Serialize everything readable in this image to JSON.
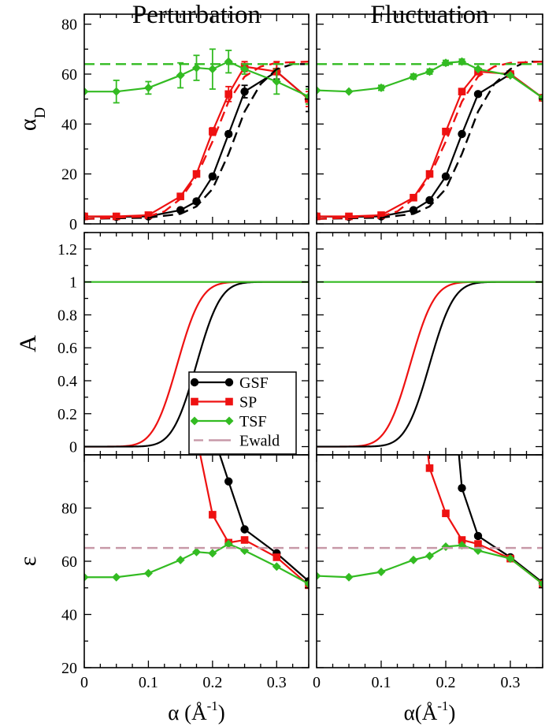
{
  "colors": {
    "GSF": "#000000",
    "SP": "#ee1111",
    "TSF": "#33bb22",
    "Ewald": "#c799a8"
  },
  "chart_data": [
    {
      "id": "alphaD-perturbation",
      "type": "line",
      "title": "Perturbation",
      "ylabel": "α",
      "ylabel_sub": "D",
      "xlim": [
        0,
        0.35
      ],
      "ylim": [
        0,
        84
      ],
      "yticks": [
        0,
        20,
        40,
        60,
        80
      ],
      "xticks": [
        0,
        0.1,
        0.2,
        0.3
      ],
      "series": [
        {
          "name": "GSF",
          "style": "marker-line",
          "marker": "circle",
          "x": [
            0,
            0.05,
            0.1,
            0.15,
            0.175,
            0.2,
            0.225,
            0.25,
            0.3,
            0.35
          ],
          "y": [
            3,
            2.8,
            3,
            5.5,
            9,
            19,
            36,
            53,
            61,
            50
          ],
          "err": [
            0,
            0,
            0,
            0,
            1,
            1,
            1,
            2.5,
            3,
            5
          ]
        },
        {
          "name": "SP",
          "style": "marker-line",
          "marker": "square",
          "x": [
            0,
            0.05,
            0.1,
            0.15,
            0.175,
            0.2,
            0.225,
            0.25,
            0.3,
            0.35
          ],
          "y": [
            3,
            3,
            3.5,
            11,
            20,
            37,
            52,
            63,
            61,
            50
          ],
          "err": [
            0,
            0,
            0,
            1,
            1,
            1.5,
            3,
            2,
            4,
            3
          ]
        },
        {
          "name": "TSF",
          "style": "marker-line",
          "marker": "diamond",
          "x": [
            0,
            0.05,
            0.1,
            0.15,
            0.175,
            0.2,
            0.225,
            0.25,
            0.3,
            0.35
          ],
          "y": [
            53,
            53,
            54.5,
            59.5,
            62.5,
            62,
            65,
            62,
            57,
            51
          ],
          "err": [
            0,
            4.5,
            2.5,
            5,
            5,
            8,
            4.5,
            2,
            5,
            3
          ]
        },
        {
          "name": "GSF",
          "style": "dashed",
          "x": [
            0,
            0.1,
            0.15,
            0.175,
            0.2,
            0.225,
            0.25,
            0.275,
            0.3,
            0.325,
            0.35
          ],
          "y": [
            2,
            2.5,
            4,
            7,
            14,
            28,
            45,
            56,
            62,
            64,
            64
          ]
        },
        {
          "name": "SP",
          "style": "dashed",
          "x": [
            0,
            0.1,
            0.125,
            0.15,
            0.175,
            0.2,
            0.225,
            0.25,
            0.275,
            0.3,
            0.35
          ],
          "y": [
            2,
            3,
            5,
            10,
            19,
            33,
            49,
            59,
            63,
            64.5,
            65
          ]
        },
        {
          "name": "TSF",
          "style": "dashed",
          "x": [
            0,
            0.35
          ],
          "y": [
            64,
            64
          ]
        }
      ]
    },
    {
      "id": "alphaD-fluctuation",
      "type": "line",
      "title": "Fluctuation",
      "ylabel": "",
      "xlim": [
        0,
        0.35
      ],
      "ylim": [
        0,
        84
      ],
      "yticks": [
        0,
        20,
        40,
        60,
        80
      ],
      "xticks": [
        0,
        0.1,
        0.2,
        0.3
      ],
      "series": [
        {
          "name": "GSF",
          "style": "marker-line",
          "marker": "circle",
          "x": [
            0,
            0.05,
            0.1,
            0.15,
            0.175,
            0.2,
            0.225,
            0.25,
            0.3,
            0.35
          ],
          "y": [
            3,
            2.8,
            3,
            5.5,
            9.5,
            19,
            36,
            52,
            60,
            50.5
          ],
          "err": [
            0,
            0,
            0,
            0,
            0,
            0,
            0,
            0,
            0,
            0
          ]
        },
        {
          "name": "SP",
          "style": "marker-line",
          "marker": "square",
          "x": [
            0,
            0.05,
            0.1,
            0.15,
            0.175,
            0.2,
            0.225,
            0.25,
            0.3,
            0.35
          ],
          "y": [
            3,
            3,
            3.5,
            10.5,
            20,
            37,
            53,
            61,
            60,
            50.5
          ],
          "err": [
            0,
            0,
            0,
            0,
            0,
            0,
            0,
            0,
            0,
            0
          ]
        },
        {
          "name": "TSF",
          "style": "marker-line",
          "marker": "diamond",
          "x": [
            0,
            0.05,
            0.1,
            0.15,
            0.175,
            0.2,
            0.225,
            0.25,
            0.3,
            0.35
          ],
          "y": [
            53.5,
            53,
            54.5,
            59,
            61,
            64.5,
            65,
            62,
            59.5,
            50.5
          ],
          "err": [
            0,
            0,
            1,
            1,
            1,
            1,
            1,
            0,
            0,
            0
          ]
        },
        {
          "name": "GSF",
          "style": "dashed",
          "x": [
            0,
            0.1,
            0.15,
            0.175,
            0.2,
            0.225,
            0.25,
            0.275,
            0.3,
            0.325,
            0.35
          ],
          "y": [
            2,
            2.5,
            4,
            7,
            14,
            28,
            45,
            56,
            62,
            65,
            65
          ]
        },
        {
          "name": "SP",
          "style": "dashed",
          "x": [
            0,
            0.1,
            0.125,
            0.15,
            0.175,
            0.2,
            0.225,
            0.25,
            0.275,
            0.3,
            0.35
          ],
          "y": [
            2,
            3,
            5,
            10,
            19,
            33,
            49,
            59,
            63,
            64.5,
            65
          ]
        },
        {
          "name": "TSF",
          "style": "dashed",
          "x": [
            0,
            0.35
          ],
          "y": [
            64,
            64
          ]
        }
      ]
    },
    {
      "id": "A-perturbation",
      "type": "line",
      "title": "",
      "ylabel": "A",
      "xlim": [
        0,
        0.35
      ],
      "ylim": [
        -0.05,
        1.3
      ],
      "yticks": [
        0,
        0.2,
        0.4,
        0.6,
        0.8,
        1,
        1.2
      ],
      "ytick_labels": [
        "0",
        "0.2",
        "0.4",
        "0.6",
        "0.8",
        "1",
        "1.2"
      ],
      "xticks": [
        0,
        0.1,
        0.2,
        0.3
      ],
      "series": [
        {
          "name": "SP",
          "style": "erf",
          "center": 0.145,
          "width": 0.0417
        },
        {
          "name": "GSF",
          "style": "erf",
          "center": 0.175,
          "width": 0.0417
        },
        {
          "name": "TSF",
          "style": "flat",
          "value": 1
        }
      ]
    },
    {
      "id": "A-fluctuation",
      "type": "line",
      "title": "",
      "ylabel": "",
      "xlim": [
        0,
        0.35
      ],
      "ylim": [
        -0.05,
        1.3
      ],
      "yticks": [
        0,
        0.2,
        0.4,
        0.6,
        0.8,
        1,
        1.2
      ],
      "xticks": [
        0,
        0.1,
        0.2,
        0.3
      ],
      "series": [
        {
          "name": "SP",
          "style": "erf",
          "center": 0.145,
          "width": 0.0417
        },
        {
          "name": "GSF",
          "style": "erf",
          "center": 0.175,
          "width": 0.0417
        },
        {
          "name": "TSF",
          "style": "flat",
          "value": 1
        }
      ]
    },
    {
      "id": "eps-perturbation",
      "type": "line",
      "title": "",
      "ylabel": "ε",
      "xlim": [
        0,
        0.35
      ],
      "ylim": [
        20,
        100
      ],
      "yticks": [
        20,
        40,
        60,
        80
      ],
      "xticks": [
        0,
        0.1,
        0.2,
        0.3
      ],
      "xtick_labels": [
        "0",
        "0.1",
        "0.2",
        "0.3"
      ],
      "xlabel": "α (Å",
      "xlabel_sup": "-1",
      "xlabel_end": ")",
      "series": [
        {
          "name": "GSF",
          "style": "marker-line",
          "marker": "circle",
          "x": [
            0.225,
            0.25,
            0.3,
            0.35
          ],
          "y": [
            90,
            72,
            63,
            52.5
          ],
          "lead": [
            0.21,
            101
          ]
        },
        {
          "name": "SP",
          "style": "marker-line",
          "marker": "square",
          "x": [
            0.2,
            0.225,
            0.25,
            0.3,
            0.35
          ],
          "y": [
            77.5,
            67,
            68,
            61.5,
            51
          ],
          "lead": [
            0.18,
            101
          ]
        },
        {
          "name": "TSF",
          "style": "marker-line",
          "marker": "diamond",
          "x": [
            0,
            0.05,
            0.1,
            0.15,
            0.175,
            0.2,
            0.225,
            0.25,
            0.3,
            0.35
          ],
          "y": [
            54,
            54,
            55.5,
            60.5,
            63.5,
            63,
            66.5,
            64,
            58,
            51.5
          ]
        },
        {
          "name": "Ewald",
          "style": "dashed",
          "x": [
            0,
            0.35
          ],
          "y": [
            65,
            65
          ]
        }
      ]
    },
    {
      "id": "eps-fluctuation",
      "type": "line",
      "title": "",
      "ylabel": "",
      "xlim": [
        0,
        0.35
      ],
      "ylim": [
        20,
        100
      ],
      "yticks": [
        20,
        40,
        60,
        80
      ],
      "xticks": [
        0,
        0.1,
        0.2,
        0.3
      ],
      "xtick_labels": [
        "0",
        "0.1",
        "0.2",
        "0.3"
      ],
      "xlabel": "α(Å",
      "xlabel_sup": "-1",
      "xlabel_end": ")",
      "series": [
        {
          "name": "GSF",
          "style": "marker-line",
          "marker": "circle",
          "x": [
            0.225,
            0.25,
            0.3,
            0.35
          ],
          "y": [
            87.5,
            69.5,
            61.5,
            52
          ],
          "lead": [
            0.22,
            101
          ]
        },
        {
          "name": "SP",
          "style": "marker-line",
          "marker": "square",
          "x": [
            0.175,
            0.2,
            0.225,
            0.25,
            0.3,
            0.35
          ],
          "y": [
            95,
            78,
            68,
            66.5,
            61,
            51.5
          ],
          "lead": [
            0.172,
            101
          ]
        },
        {
          "name": "TSF",
          "style": "marker-line",
          "marker": "diamond",
          "x": [
            0,
            0.05,
            0.1,
            0.15,
            0.175,
            0.2,
            0.225,
            0.25,
            0.3,
            0.35
          ],
          "y": [
            54.5,
            54,
            56,
            60.5,
            62,
            65.5,
            66,
            64,
            61,
            51.5
          ]
        },
        {
          "name": "Ewald",
          "style": "dashed",
          "x": [
            0,
            0.35
          ],
          "y": [
            65,
            65
          ]
        }
      ]
    }
  ],
  "legend": {
    "placement": "center-left",
    "entries": [
      {
        "label": "GSF",
        "marker": "circle",
        "style": "line"
      },
      {
        "label": "SP",
        "marker": "square",
        "style": "line"
      },
      {
        "label": "TSF",
        "marker": "diamond",
        "style": "line"
      },
      {
        "label": "Ewald",
        "marker": "none",
        "style": "dashed"
      }
    ]
  }
}
